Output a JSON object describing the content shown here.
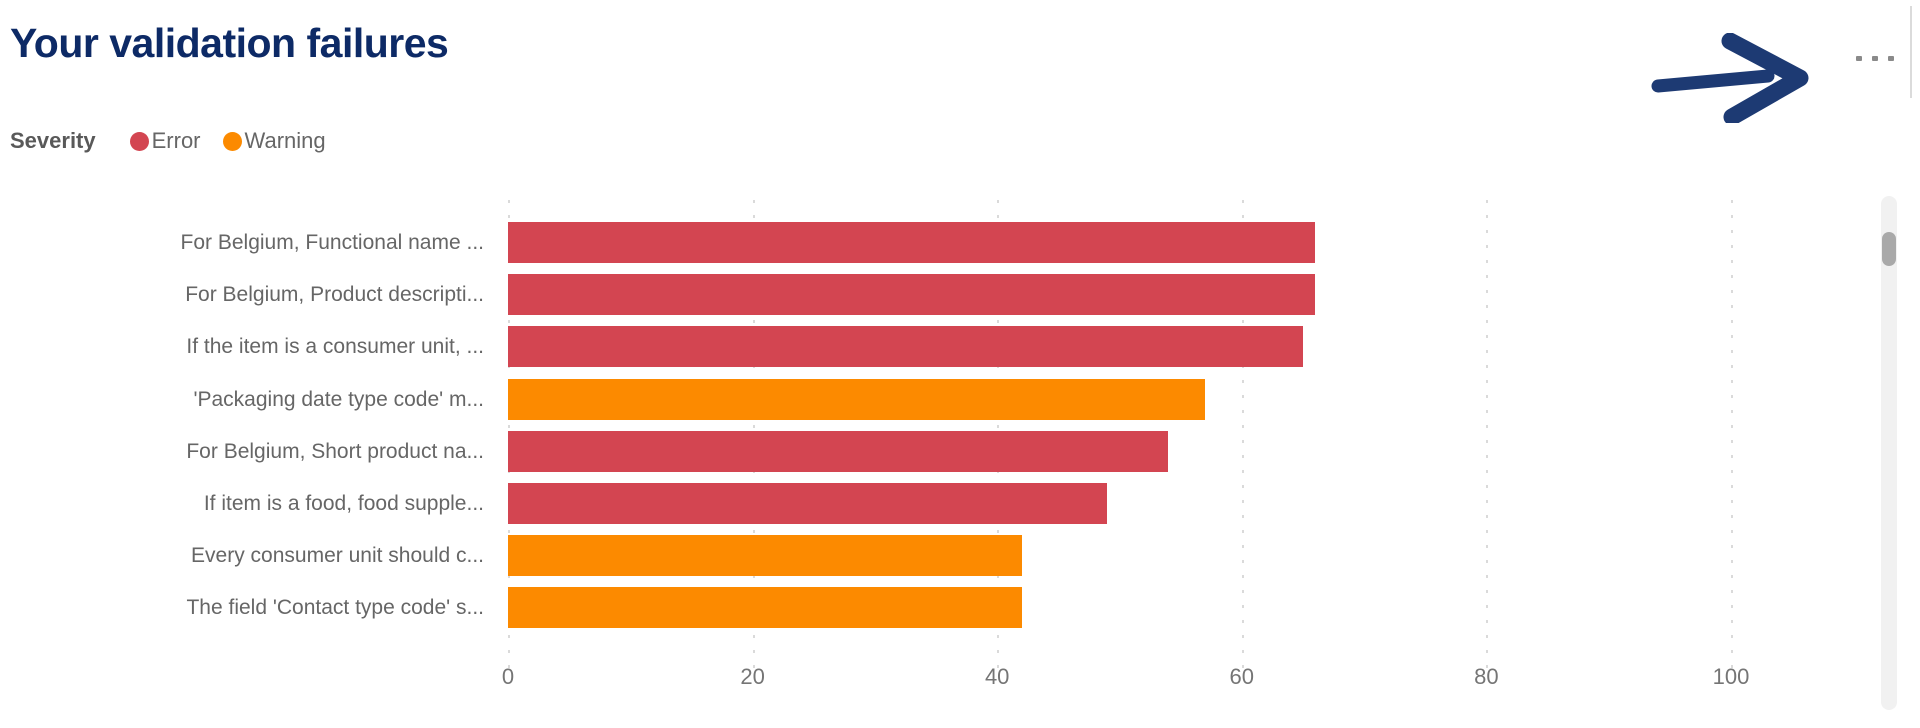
{
  "header": {
    "title": "Your validation failures"
  },
  "legend": {
    "title": "Severity",
    "items": [
      {
        "label": "Error",
        "color": "#D34551"
      },
      {
        "label": "Warning",
        "color": "#FC8A00"
      }
    ]
  },
  "chart_data": {
    "type": "bar",
    "orientation": "horizontal",
    "title": "Your validation failures",
    "xlabel": "",
    "ylabel": "",
    "xlim": [
      0,
      100
    ],
    "x_ticks": [
      0,
      20,
      40,
      60,
      80,
      100
    ],
    "grid": "vertical-dotted",
    "legend_title": "Severity",
    "legend_position": "top-left",
    "categories": [
      "For Belgium, Functional name ...",
      "For Belgium, Product descripti...",
      "If the item is a consumer unit, ...",
      "'Packaging date type code' m...",
      "For Belgium, Short product na...",
      "If item is a food, food supple...",
      "Every consumer unit should c...",
      "The field 'Contact type code' s..."
    ],
    "series": [
      {
        "name": "Validation failures",
        "values": [
          66,
          66,
          65,
          57,
          54,
          49,
          42,
          42
        ],
        "severity": [
          "Error",
          "Error",
          "Error",
          "Warning",
          "Error",
          "Error",
          "Warning",
          "Warning"
        ]
      }
    ],
    "colors": {
      "Error": "#D34551",
      "Warning": "#FC8A00"
    }
  },
  "annotations": {
    "arrow_color": "#1D3A73",
    "arrow_direction": "right"
  },
  "colors": {
    "title_text": "#0D2A66",
    "axis_text": "#757575",
    "category_text": "#666666",
    "legend_title_text": "#595959",
    "legend_item_text": "#666666",
    "gridline": "#DADADA"
  }
}
